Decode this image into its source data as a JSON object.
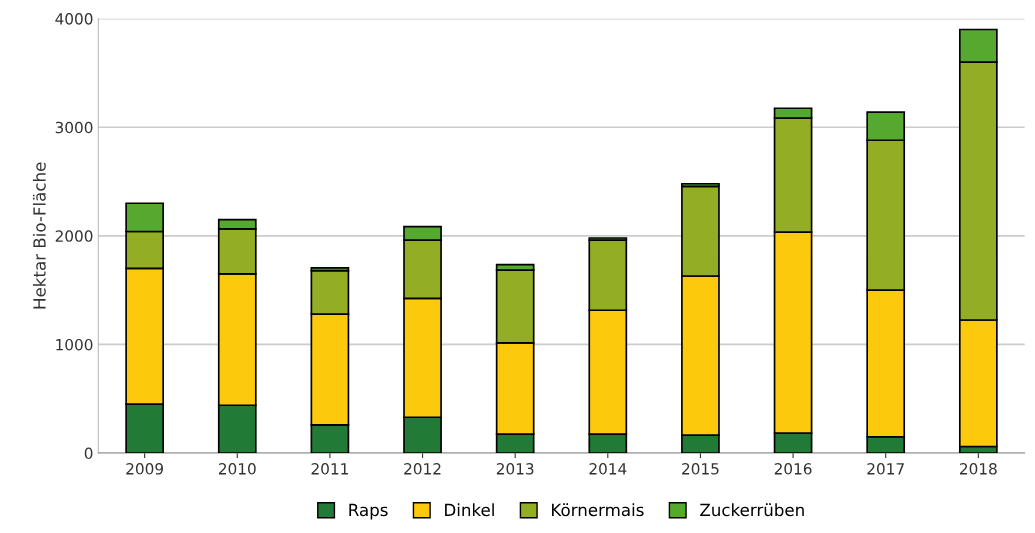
{
  "chart_data": {
    "type": "bar",
    "stacked": true,
    "ylabel": "Hektar Bio-Fläche",
    "categories": [
      "2009",
      "2010",
      "2011",
      "2012",
      "2013",
      "2014",
      "2015",
      "2016",
      "2017",
      "2018"
    ],
    "series": [
      {
        "name": "Raps",
        "color": "#217a35",
        "values": [
          450,
          440,
          260,
          330,
          175,
          175,
          165,
          185,
          150,
          60
        ]
      },
      {
        "name": "Dinkel",
        "color": "#fdc90d",
        "values": [
          1250,
          1210,
          1020,
          1095,
          840,
          1140,
          1465,
          1850,
          1350,
          1165
        ]
      },
      {
        "name": "Körnermais",
        "color": "#93ad24",
        "values": [
          340,
          415,
          400,
          535,
          670,
          645,
          825,
          1050,
          1380,
          2375
        ]
      },
      {
        "name": "Zuckerrüben",
        "color": "#55a92f",
        "values": [
          260,
          85,
          25,
          125,
          50,
          20,
          25,
          90,
          260,
          300
        ]
      }
    ],
    "ylim": [
      0,
      4000
    ],
    "yticks": [
      0,
      1000,
      2000,
      3000,
      4000
    ],
    "grid": "y",
    "legend": "bottom"
  }
}
